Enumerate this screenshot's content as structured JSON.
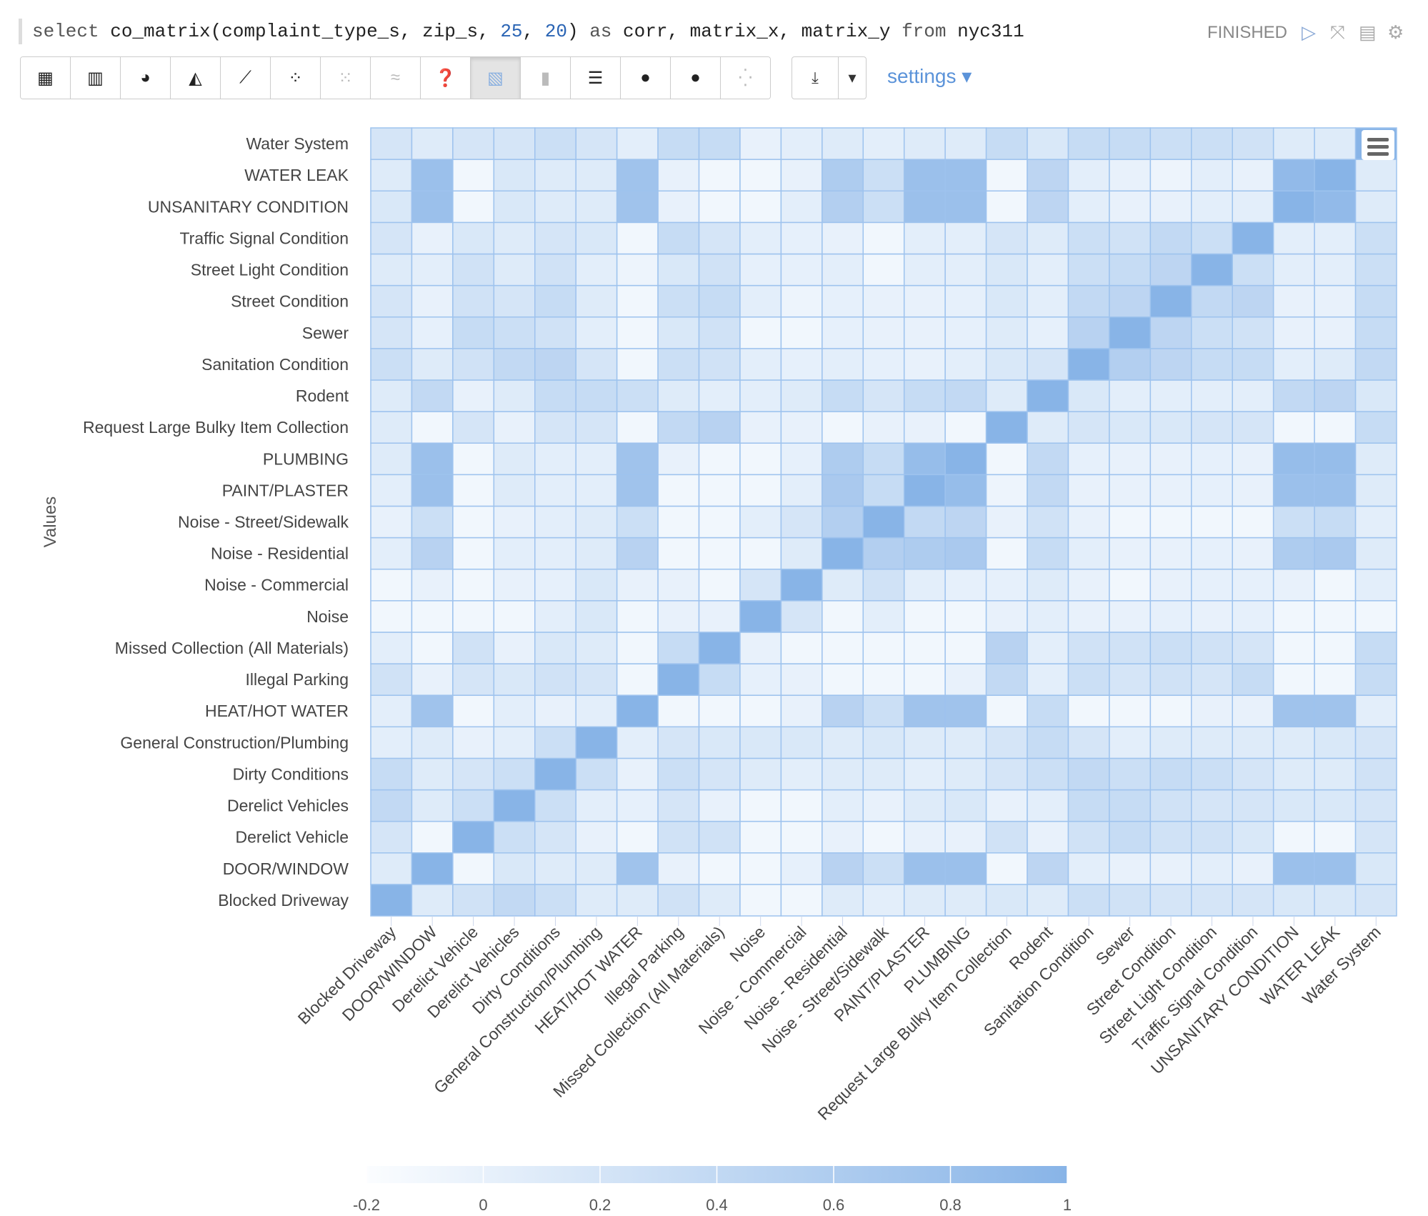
{
  "query": {
    "prefix": "select ",
    "fn": "co_matrix(complaint_type_s, zip_s, ",
    "arg1": "25",
    "sep": ", ",
    "arg2": "20",
    "rest1": ") ",
    "as": "as",
    "rest2": " corr, matrix_x, matrix_y ",
    "from": "from",
    "rest3": " nyc311"
  },
  "status": "FINISHED",
  "controls": {
    "run_icon": "play-icon",
    "collapse_icon": "collapse-icon",
    "book_icon": "book-icon",
    "gear_icon": "gear-icon"
  },
  "toolbar": [
    {
      "name": "table-icon",
      "glyph": "▦"
    },
    {
      "name": "bar-chart-icon",
      "glyph": "▥"
    },
    {
      "name": "pie-chart-icon",
      "glyph": "◕"
    },
    {
      "name": "area-chart-icon",
      "glyph": "◭"
    },
    {
      "name": "line-chart-icon",
      "glyph": "⟋"
    },
    {
      "name": "scatter-chart-icon",
      "glyph": "⁘"
    },
    {
      "name": "bubble-chart-icon",
      "glyph": "⁙"
    },
    {
      "name": "multi-line-icon",
      "glyph": "≈"
    },
    {
      "name": "help-icon",
      "glyph": "❓"
    },
    {
      "name": "heatmap-icon",
      "glyph": "▧"
    },
    {
      "name": "column-chart-icon",
      "glyph": "▮"
    },
    {
      "name": "stacked-bar-icon",
      "glyph": "☰"
    },
    {
      "name": "globe-icon",
      "glyph": "●"
    },
    {
      "name": "globe-alt-icon",
      "glyph": "●"
    },
    {
      "name": "points-icon",
      "glyph": "⁛"
    }
  ],
  "download": {
    "icon": "download-icon",
    "glyph": "⤓",
    "caret": "▾"
  },
  "settings_label": "settings ▾",
  "menu_icon": "hamburger-menu-icon",
  "chart_data": {
    "type": "heatmap",
    "title": "",
    "ylabel": "Values",
    "categories": [
      "Blocked Driveway",
      "DOOR/WINDOW",
      "Derelict Vehicle",
      "Derelict Vehicles",
      "Dirty Conditions",
      "General Construction/Plumbing",
      "HEAT/HOT WATER",
      "Illegal Parking",
      "Missed Collection (All Materials)",
      "Noise",
      "Noise - Commercial",
      "Noise - Residential",
      "Noise - Street/Sidewalk",
      "PAINT/PLASTER",
      "PLUMBING",
      "Request Large Bulky Item Collection",
      "Rodent",
      "Sanitation Condition",
      "Sewer",
      "Street Condition",
      "Street Light Condition",
      "Traffic Signal Condition",
      "UNSANITARY CONDITION",
      "WATER LEAK",
      "Water System"
    ],
    "values": [
      [
        1,
        0.1,
        0.25,
        0.4,
        0.3,
        0.1,
        0.1,
        0.25,
        0.1,
        -0.1,
        -0.1,
        0.1,
        0.05,
        0.1,
        0.1,
        0.15,
        0.1,
        0.3,
        0.25,
        0.2,
        0.2,
        0.2,
        0.15,
        0.15,
        0.2
      ],
      [
        0.1,
        1,
        -0.1,
        0.15,
        0.1,
        0.1,
        0.75,
        0,
        -0.1,
        -0.1,
        0.02,
        0.5,
        0.3,
        0.8,
        0.8,
        -0.1,
        0.45,
        0.05,
        0,
        0,
        0.05,
        0,
        0.8,
        0.8,
        0.15
      ],
      [
        0.2,
        -0.1,
        1,
        0.3,
        0.2,
        0,
        -0.1,
        0.25,
        0.25,
        -0.1,
        -0.1,
        0,
        -0.1,
        0,
        0,
        0.25,
        0,
        0.25,
        0.35,
        0.25,
        0.25,
        0.15,
        -0.1,
        -0.1,
        0.2
      ],
      [
        0.4,
        0.1,
        0.3,
        1,
        0.3,
        0.05,
        0.02,
        0.2,
        0,
        -0.1,
        -0.1,
        0.05,
        0,
        0.1,
        0.15,
        0,
        0.05,
        0.35,
        0.35,
        0.25,
        0.2,
        0.2,
        0.15,
        0.15,
        0.2
      ],
      [
        0.35,
        0.1,
        0.2,
        0.3,
        1,
        0.3,
        0,
        0.3,
        0.2,
        0.1,
        0.05,
        0.1,
        0.1,
        0.05,
        0.1,
        0.2,
        0.3,
        0.4,
        0.3,
        0.35,
        0.3,
        0.2,
        0.1,
        0.1,
        0.25
      ],
      [
        0.05,
        0.1,
        0,
        0.05,
        0.3,
        1,
        0.05,
        0.2,
        0.15,
        0.15,
        0.15,
        0.1,
        0.15,
        0.1,
        0.1,
        0.2,
        0.35,
        0.2,
        0.05,
        0.1,
        0.1,
        0.1,
        0.1,
        0.15,
        0.2
      ],
      [
        0.05,
        0.75,
        -0.1,
        0.05,
        0,
        0.05,
        1,
        -0.1,
        -0.1,
        -0.1,
        0,
        0.5,
        0.3,
        0.75,
        0.75,
        -0.1,
        0.35,
        -0.1,
        -0.1,
        -0.1,
        0,
        0,
        0.75,
        0.75,
        0.05
      ],
      [
        0.25,
        0,
        0.2,
        0.15,
        0.25,
        0.2,
        -0.1,
        1,
        0.35,
        0.02,
        0,
        -0.1,
        -0.1,
        -0.1,
        0,
        0.4,
        0.05,
        0.3,
        0.2,
        0.25,
        0.2,
        0.35,
        -0.1,
        -0.1,
        0.35
      ],
      [
        0.05,
        -0.1,
        0.25,
        0,
        0.15,
        0.1,
        -0.1,
        0.35,
        1,
        0,
        -0.1,
        -0.1,
        -0.1,
        -0.1,
        -0.1,
        0.5,
        0.05,
        0.25,
        0.25,
        0.3,
        0.25,
        0.2,
        -0.1,
        -0.1,
        0.35
      ],
      [
        -0.1,
        -0.1,
        -0.1,
        -0.1,
        0.05,
        0.15,
        -0.1,
        0,
        0,
        1,
        0.2,
        -0.1,
        0.05,
        -0.1,
        -0.1,
        0,
        0.05,
        0,
        0,
        0.02,
        0,
        0.02,
        -0.1,
        -0.1,
        -0.1
      ],
      [
        -0.1,
        0,
        -0.1,
        0,
        0.02,
        0.15,
        0,
        0,
        -0.1,
        0.2,
        1,
        0.1,
        0.25,
        0.05,
        0.02,
        0.02,
        0.1,
        0,
        -0.1,
        0,
        0.02,
        0.02,
        0,
        -0.1,
        0.05
      ],
      [
        0.05,
        0.5,
        -0.1,
        0.05,
        0.05,
        0.1,
        0.5,
        -0.1,
        -0.1,
        -0.1,
        0.1,
        1,
        0.55,
        0.6,
        0.65,
        -0.1,
        0.35,
        0.05,
        0,
        0,
        0.02,
        0,
        0.6,
        0.65,
        0.1
      ],
      [
        0,
        0.3,
        -0.1,
        0,
        0.05,
        0.1,
        0.3,
        -0.1,
        -0.1,
        0.05,
        0.2,
        0.55,
        1,
        0.4,
        0.45,
        0,
        0.25,
        0,
        -0.1,
        -0.1,
        -0.1,
        -0.1,
        0.3,
        0.35,
        0.05
      ],
      [
        0.05,
        0.8,
        -0.1,
        0.1,
        0.05,
        0.05,
        0.75,
        -0.1,
        -0.1,
        -0.1,
        0.05,
        0.65,
        0.35,
        1,
        0.85,
        -0.05,
        0.4,
        0,
        0,
        0,
        0.02,
        0,
        0.8,
        0.8,
        0.1
      ],
      [
        0.1,
        0.8,
        -0.1,
        0.1,
        0.05,
        0.05,
        0.75,
        0,
        -0.1,
        -0.1,
        0.02,
        0.6,
        0.35,
        0.85,
        1,
        -0.1,
        0.4,
        0.02,
        0,
        0,
        0.02,
        0,
        0.85,
        0.85,
        0.1
      ],
      [
        0.1,
        -0.1,
        0.2,
        0,
        0.2,
        0.2,
        -0.1,
        0.4,
        0.5,
        0,
        0,
        -0.1,
        0,
        0,
        -0.1,
        1,
        0.1,
        0.2,
        0.15,
        0.15,
        0.2,
        0.2,
        -0.1,
        -0.1,
        0.35
      ],
      [
        0.1,
        0.4,
        0,
        0.1,
        0.35,
        0.35,
        0.3,
        0.1,
        0.05,
        0.05,
        0.1,
        0.35,
        0.2,
        0.35,
        0.4,
        0.1,
        1,
        0.15,
        0.05,
        0.05,
        0.05,
        0.05,
        0.4,
        0.45,
        0.15
      ],
      [
        0.3,
        0.1,
        0.25,
        0.4,
        0.45,
        0.2,
        -0.1,
        0.3,
        0.25,
        0.05,
        0.02,
        0.05,
        0.02,
        0,
        0.05,
        0.15,
        0.2,
        1,
        0.55,
        0.45,
        0.35,
        0.35,
        0.05,
        0.1,
        0.4
      ],
      [
        0.2,
        0.02,
        0.35,
        0.3,
        0.25,
        0.05,
        -0.1,
        0.15,
        0.25,
        -0.1,
        -0.1,
        0.02,
        0,
        0,
        0.02,
        0.1,
        0.02,
        0.5,
        1,
        0.45,
        0.3,
        0.25,
        0,
        0,
        0.35
      ],
      [
        0.2,
        0,
        0.25,
        0.2,
        0.35,
        0.1,
        -0.1,
        0.3,
        0.35,
        0.05,
        -0.05,
        0.02,
        0,
        0,
        0.02,
        0.15,
        0.05,
        0.4,
        0.45,
        1,
        0.4,
        0.45,
        0,
        0,
        0.35
      ],
      [
        0.1,
        0.05,
        0.25,
        0.1,
        0.25,
        0.05,
        -0.05,
        0.15,
        0.25,
        0.02,
        0.02,
        0.05,
        -0.1,
        0.05,
        0.05,
        0.15,
        0.05,
        0.3,
        0.35,
        0.45,
        1,
        0.3,
        0.05,
        0.05,
        0.3
      ],
      [
        0.2,
        0,
        0.15,
        0.1,
        0.2,
        0.15,
        -0.1,
        0.35,
        0.2,
        0.05,
        0.02,
        0,
        -0.1,
        0.05,
        0.05,
        0.2,
        0.1,
        0.3,
        0.25,
        0.4,
        0.3,
        1,
        0.05,
        0.05,
        0.3
      ],
      [
        0.15,
        0.8,
        -0.1,
        0.15,
        0.1,
        0.1,
        0.75,
        0,
        -0.1,
        -0.1,
        0.05,
        0.55,
        0.3,
        0.8,
        0.8,
        -0.1,
        0.45,
        0.05,
        0,
        0,
        0.05,
        0.05,
        1,
        0.9,
        0.1
      ],
      [
        0.1,
        0.8,
        -0.1,
        0.15,
        0.1,
        0.1,
        0.75,
        0,
        -0.1,
        -0.1,
        0,
        0.6,
        0.3,
        0.8,
        0.8,
        -0.1,
        0.45,
        0.05,
        0,
        -0.05,
        0.05,
        0,
        0.9,
        1,
        0.1
      ],
      [
        0.2,
        0.1,
        0.2,
        0.2,
        0.3,
        0.2,
        0.05,
        0.35,
        0.35,
        0,
        0.05,
        0.1,
        0.05,
        0.1,
        0.1,
        0.35,
        0.15,
        0.35,
        0.35,
        0.3,
        0.3,
        0.25,
        0.1,
        0.1,
        1
      ]
    ],
    "color_range": [
      -0.2,
      1
    ],
    "colorbar_ticks": [
      "-0.2",
      "0",
      "0.2",
      "0.4",
      "0.6",
      "0.8",
      "1"
    ],
    "colors": {
      "low": "#fbfdff",
      "high": "#88b4e7",
      "grid": "#9ec3ee"
    },
    "legend": "bottom"
  }
}
